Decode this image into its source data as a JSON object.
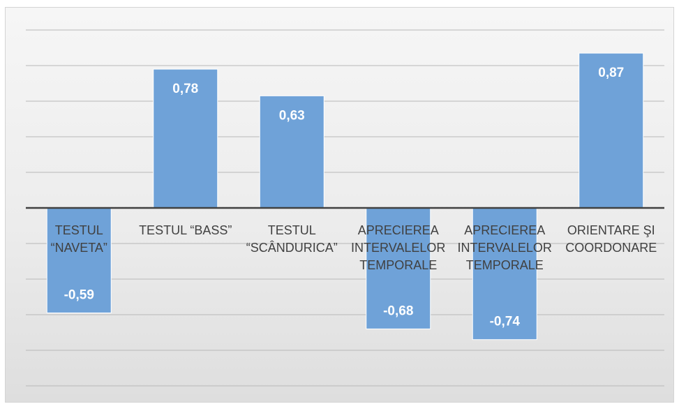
{
  "chart_data": {
    "type": "bar",
    "categories": [
      [
        "TESTUL",
        "“NAVETA”"
      ],
      [
        "TESTUL “BASS”"
      ],
      [
        "TESTUL",
        "“SCÂNDURICA”"
      ],
      [
        "APRECIEREA",
        "INTERVALELOR",
        "TEMPORALE"
      ],
      [
        "APRECIEREA",
        "INTERVALELOR",
        "TEMPORALE"
      ],
      [
        "ORIENTARE ŞI",
        "COORDONARE"
      ]
    ],
    "values": [
      -0.59,
      0.78,
      0.63,
      -0.68,
      -0.74,
      0.87
    ],
    "value_labels": [
      "-0,59",
      "0,78",
      "0,63",
      "-0,68",
      "-0,74",
      "0,87"
    ],
    "ylim": [
      -1.0,
      1.0
    ],
    "grid": true,
    "legend": "none",
    "colors": {
      "bar": "#6fa2d8",
      "bar_edge": "#ffffff",
      "axis": "#404040",
      "grid": "#b8b8b8"
    }
  }
}
